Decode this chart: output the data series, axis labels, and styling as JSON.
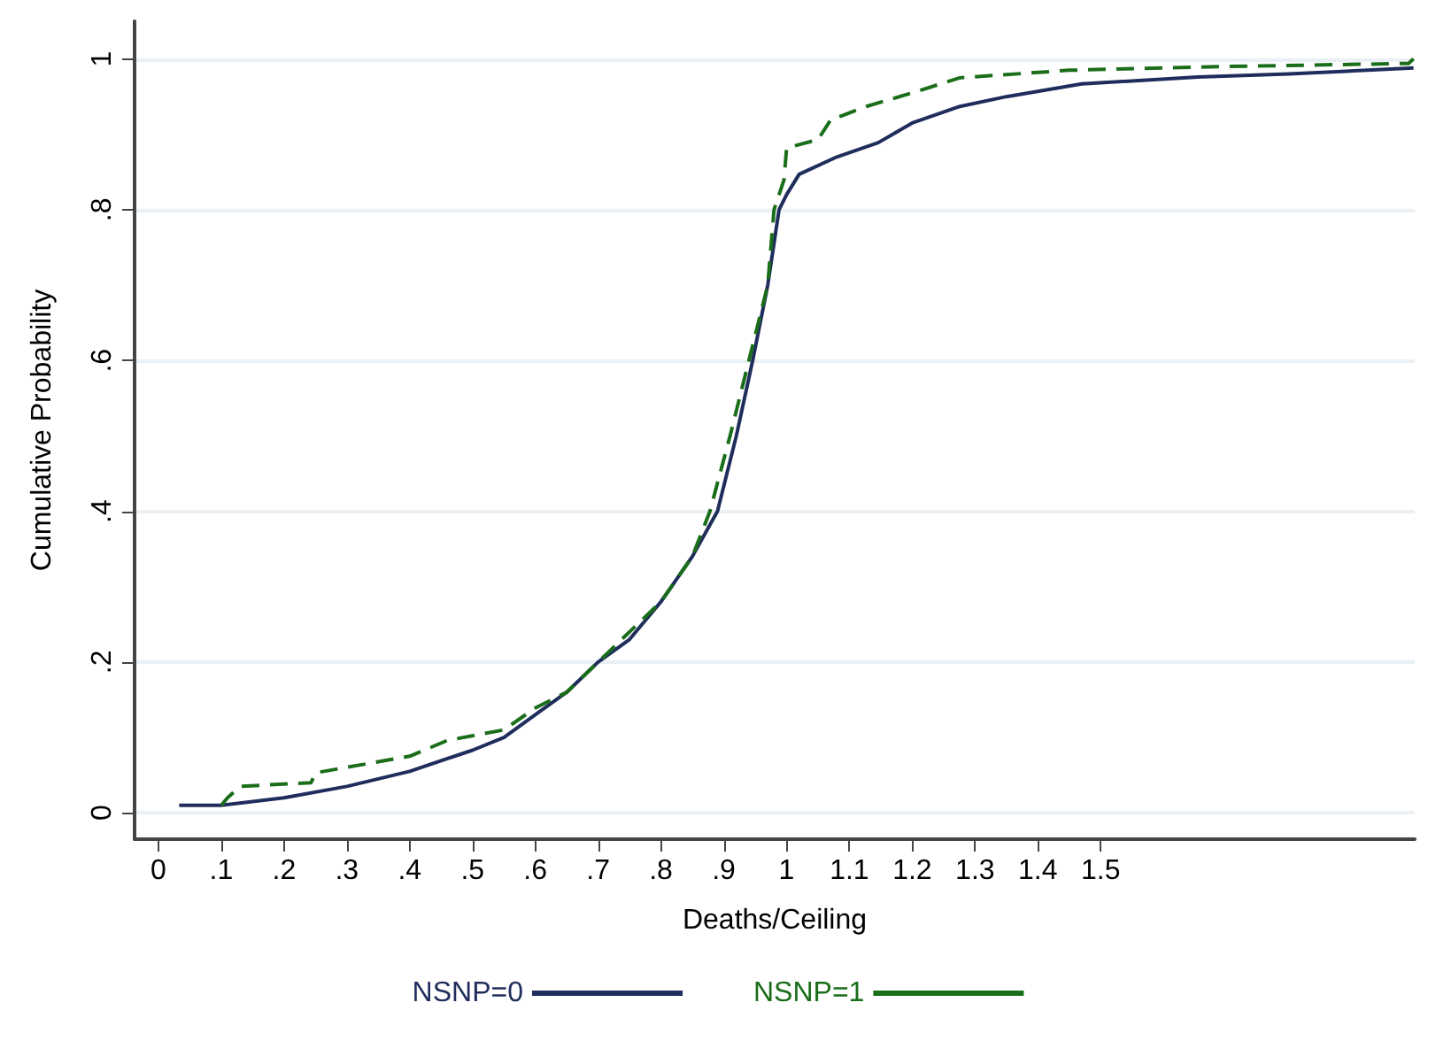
{
  "chart_data": {
    "type": "line",
    "xlabel": "Deaths/Ceiling",
    "ylabel": "Cumulative Probability",
    "xlim": [
      -0.038,
      2.0
    ],
    "ylim": [
      -0.035,
      1.05
    ],
    "xticks": [
      0,
      {
        "value": 0.1,
        "label": ".1"
      },
      {
        "value": 0.2,
        "label": ".2"
      },
      {
        "value": 0.3,
        "label": ".3"
      },
      {
        "value": 0.4,
        "label": ".4"
      },
      {
        "value": 0.5,
        "label": ".5"
      },
      {
        "value": 0.6,
        "label": ".6"
      },
      {
        "value": 0.7,
        "label": ".7"
      },
      {
        "value": 0.8,
        "label": ".8"
      },
      {
        "value": 0.9,
        "label": ".9"
      },
      1,
      {
        "value": 1.1,
        "label": "1.1"
      },
      {
        "value": 1.2,
        "label": "1.2"
      },
      {
        "value": 1.3,
        "label": "1.3"
      },
      {
        "value": 1.4,
        "label": "1.4"
      },
      {
        "value": 1.5,
        "label": "1.5"
      }
    ],
    "yticks": [
      0,
      {
        "value": 0.2,
        "label": ".2"
      },
      {
        "value": 0.4,
        "label": ".4"
      },
      {
        "value": 0.6,
        "label": ".6"
      },
      {
        "value": 0.8,
        "label": ".8"
      },
      1
    ],
    "grid": "y",
    "legend": "bottom",
    "marker": "none",
    "series": [
      {
        "name": "NSNP=0",
        "color": "#1f2d5c",
        "line_style": "solid",
        "x": [
          0.033,
          0.1,
          0.2,
          0.3,
          0.4,
          0.5,
          0.55,
          0.6,
          0.65,
          0.7,
          0.75,
          0.8,
          0.85,
          0.89,
          0.92,
          0.946,
          0.97,
          0.988,
          1.0,
          1.02,
          1.08,
          1.146,
          1.2,
          1.276,
          1.35,
          1.47,
          1.655,
          1.8,
          1.998
        ],
        "values": [
          0.01,
          0.01,
          0.02,
          0.035,
          0.055,
          0.083,
          0.1,
          0.13,
          0.16,
          0.2,
          0.23,
          0.28,
          0.34,
          0.4,
          0.5,
          0.6,
          0.7,
          0.8,
          0.82,
          0.847,
          0.87,
          0.889,
          0.915,
          0.937,
          0.95,
          0.967,
          0.976,
          0.98,
          0.988
        ]
      },
      {
        "name": "NSNP=1",
        "color": "#1a6e1a",
        "line_style": "dashed",
        "x": [
          0.1,
          0.11,
          0.13,
          0.243,
          0.25,
          0.4,
          0.46,
          0.55,
          0.6,
          0.65,
          0.7,
          0.8,
          0.85,
          0.878,
          0.91,
          0.94,
          0.97,
          0.98,
          0.996,
          1.0,
          1.05,
          1.07,
          1.127,
          1.2,
          1.276,
          1.45,
          1.7,
          1.99,
          1.998
        ],
        "values": [
          0.01,
          0.02,
          0.035,
          0.04,
          0.053,
          0.075,
          0.096,
          0.11,
          0.139,
          0.16,
          0.2,
          0.28,
          0.34,
          0.4,
          0.5,
          0.6,
          0.7,
          0.8,
          0.84,
          0.882,
          0.893,
          0.919,
          0.937,
          0.955,
          0.975,
          0.985,
          0.99,
          0.994,
          1.0
        ]
      }
    ]
  }
}
